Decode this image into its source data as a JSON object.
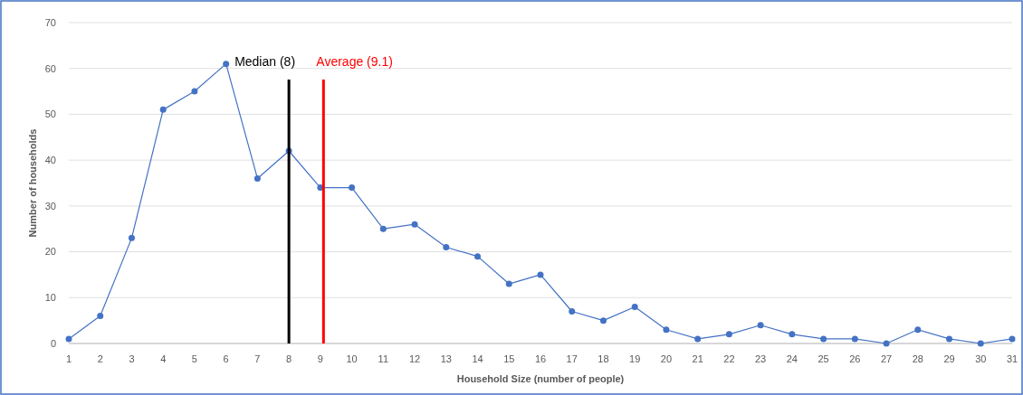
{
  "chart_data": {
    "type": "line",
    "xlabel": "Household Size (number of people)",
    "ylabel": "Number of households",
    "x": [
      1,
      2,
      3,
      4,
      5,
      6,
      7,
      8,
      9,
      10,
      11,
      12,
      13,
      14,
      15,
      16,
      17,
      18,
      19,
      20,
      21,
      22,
      23,
      24,
      25,
      26,
      27,
      28,
      29,
      30,
      31
    ],
    "series": [
      {
        "color": "#4472c4",
        "values": [
          1,
          6,
          23,
          51,
          55,
          61,
          36,
          42,
          34,
          34,
          25,
          26,
          21,
          19,
          13,
          15,
          7,
          5,
          8,
          3,
          1,
          2,
          4,
          2,
          1,
          1,
          0,
          3,
          1,
          0,
          1
        ]
      }
    ],
    "xlim": [
      1,
      31
    ],
    "xticks": [
      1,
      2,
      3,
      4,
      5,
      6,
      7,
      8,
      9,
      10,
      11,
      12,
      13,
      14,
      15,
      16,
      17,
      18,
      19,
      20,
      21,
      22,
      23,
      24,
      25,
      26,
      27,
      28,
      29,
      30,
      31
    ],
    "ylim": [
      0,
      70
    ],
    "yticks": [
      0,
      10,
      20,
      30,
      40,
      50,
      60,
      70
    ],
    "ref_lines": [
      {
        "axis": "x",
        "value": 8,
        "label": "Median (8)",
        "color": "#000000"
      },
      {
        "axis": "x",
        "value": 9.1,
        "label": "Average (9.1)",
        "color": "#ff0000"
      }
    ],
    "grid": "y",
    "marker": "circle",
    "line_style": "solid"
  }
}
